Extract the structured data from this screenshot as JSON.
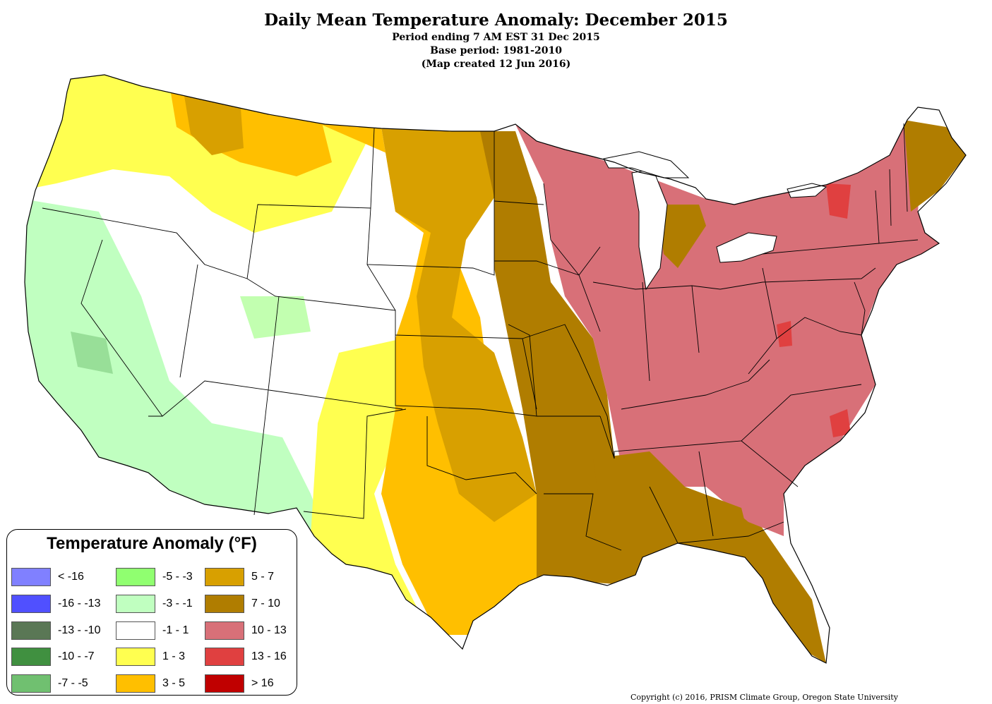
{
  "title": "Daily Mean Temperature Anomaly: December 2015",
  "subtitle_lines": [
    "Period ending 7 AM EST 31 Dec 2015",
    "Base period: 1981-2010",
    "(Map created 12 Jun 2016)"
  ],
  "legend": {
    "title": "Temperature Anomaly (°F)",
    "items": [
      {
        "label": "< -16",
        "color": "#8080ff"
      },
      {
        "label": "-16 - -13",
        "color": "#5050ff"
      },
      {
        "label": "-13 - -10",
        "color": "#5a7755"
      },
      {
        "label": "-10 - -7",
        "color": "#409040"
      },
      {
        "label": "-7 - -5",
        "color": "#70c070"
      },
      {
        "label": "-5 - -3",
        "color": "#90ff70"
      },
      {
        "label": "-3 - -1",
        "color": "#c0ffc0"
      },
      {
        "label": "-1 - 1",
        "color": "#ffffff"
      },
      {
        "label": "1 - 3",
        "color": "#ffff50"
      },
      {
        "label": "3 - 5",
        "color": "#ffbf00"
      },
      {
        "label": "5 - 7",
        "color": "#d8a000"
      },
      {
        "label": "7 - 10",
        "color": "#b07d00"
      },
      {
        "label": "10 - 13",
        "color": "#d87078"
      },
      {
        "label": "13 - 16",
        "color": "#e04040"
      },
      {
        "label": "> 16",
        "color": "#c00000"
      }
    ]
  },
  "copyright": "Copyright (c) 2016, PRISM Climate Group, Oregon State University"
}
